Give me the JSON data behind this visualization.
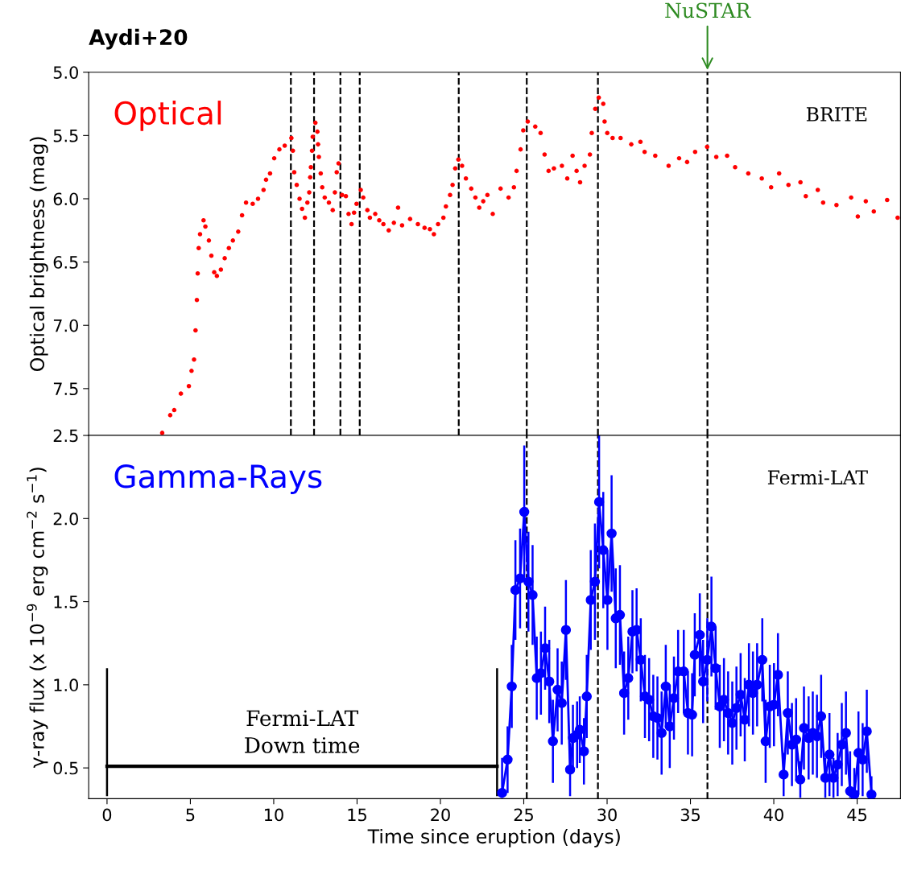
{
  "chart_data": [
    {
      "type": "scatter",
      "title": "Aydi+20",
      "ylabel": "Optical brightness (mag)",
      "marker": "circle",
      "annotations": [
        "Optical",
        "BRITE",
        {
          "text": "NuSTAR",
          "x": 36.02,
          "y": 5.0
        }
      ],
      "xlim": [
        -1.1,
        47.6
      ],
      "xticks": [
        0,
        5,
        10,
        15,
        20,
        25,
        30,
        35,
        40,
        45
      ],
      "ylim": [
        7.87,
        5.0
      ],
      "yticks": [
        {
          "value": 5.0,
          "label": "5.0"
        },
        {
          "value": 5.5,
          "label": "5.5"
        },
        {
          "value": 6.0,
          "label": "6.0"
        },
        {
          "value": 6.5,
          "label": "6.5"
        },
        {
          "value": 7.0,
          "label": "7.0"
        },
        {
          "value": 7.5,
          "label": "7.5"
        }
      ],
      "tick_labels": "y",
      "grid": false,
      "legend": false,
      "ref_lines": [
        {
          "axis": "x",
          "value": 11.03,
          "color": "#000000",
          "line_style": "dashed"
        },
        {
          "axis": "x",
          "value": 12.42,
          "color": "#000000",
          "line_style": "dashed"
        },
        {
          "axis": "x",
          "value": 14.0,
          "color": "#000000",
          "line_style": "dashed"
        },
        {
          "axis": "x",
          "value": 15.16,
          "color": "#000000",
          "line_style": "dashed"
        },
        {
          "axis": "x",
          "value": 21.1,
          "color": "#000000",
          "line_style": "dashed"
        },
        {
          "axis": "x",
          "value": 25.18,
          "color": "#000000",
          "line_style": "dashed"
        },
        {
          "axis": "x",
          "value": 29.45,
          "color": "#000000",
          "line_style": "dashed"
        },
        {
          "axis": "x",
          "value": 36.02,
          "color": "#000000",
          "line_style": "dashed"
        }
      ],
      "series": [
        {
          "color": "#ff0000",
          "x": [
            3.31,
            3.79,
            4.03,
            4.43,
            4.91,
            5.07,
            5.22,
            5.31,
            5.39,
            5.44,
            5.5,
            5.58,
            5.79,
            5.9,
            6.11,
            6.26,
            6.43,
            6.59,
            6.83,
            7.06,
            7.31,
            7.55,
            7.87,
            8.1,
            8.34,
            8.74,
            9.06,
            9.39,
            9.54,
            9.78,
            10.03,
            10.34,
            10.66,
            11.06,
            11.15,
            11.23,
            11.38,
            11.55,
            11.7,
            11.87,
            12.02,
            12.13,
            12.19,
            12.23,
            12.3,
            12.34,
            12.5,
            12.62,
            12.66,
            12.71,
            12.82,
            12.91,
            13.06,
            13.31,
            13.54,
            13.67,
            13.78,
            13.89,
            14.1,
            14.33,
            14.49,
            14.67,
            14.82,
            14.97,
            15.22,
            15.37,
            15.62,
            15.77,
            16.09,
            16.33,
            16.58,
            16.9,
            17.21,
            17.46,
            17.7,
            18.18,
            18.65,
            19.05,
            19.37,
            19.61,
            19.86,
            20.18,
            20.33,
            20.58,
            20.73,
            20.89,
            21.08,
            21.3,
            21.53,
            21.85,
            22.1,
            22.33,
            22.57,
            22.82,
            23.14,
            23.61,
            24.09,
            24.41,
            24.57,
            24.81,
            24.97,
            25.24,
            25.69,
            26.01,
            26.25,
            26.49,
            26.81,
            27.29,
            27.61,
            27.93,
            28.17,
            28.38,
            28.65,
            28.97,
            29.08,
            29.29,
            29.5,
            29.77,
            29.85,
            30.01,
            30.33,
            30.81,
            31.45,
            32.0,
            32.25,
            32.89,
            33.69,
            34.32,
            34.8,
            35.28,
            36.0,
            36.55,
            37.2,
            37.68,
            38.47,
            39.28,
            39.84,
            40.32,
            40.88,
            41.6,
            41.92,
            42.64,
            42.96,
            43.76,
            44.64,
            45.04,
            45.52,
            46.0,
            46.8,
            47.43
          ],
          "values": [
            7.85,
            7.71,
            7.67,
            7.54,
            7.48,
            7.36,
            7.27,
            7.04,
            6.8,
            6.59,
            6.39,
            6.28,
            6.17,
            6.22,
            6.33,
            6.45,
            6.58,
            6.61,
            6.56,
            6.47,
            6.39,
            6.33,
            6.26,
            6.13,
            6.03,
            6.04,
            6.0,
            5.93,
            5.85,
            5.8,
            5.68,
            5.61,
            5.58,
            5.52,
            5.62,
            5.79,
            5.89,
            6.0,
            6.08,
            6.15,
            6.03,
            5.95,
            5.83,
            5.75,
            5.62,
            5.51,
            5.4,
            5.47,
            5.57,
            5.67,
            5.8,
            5.91,
            5.99,
            6.03,
            6.09,
            5.95,
            5.79,
            5.72,
            5.97,
            5.98,
            6.12,
            6.2,
            6.11,
            6.04,
            5.93,
            5.99,
            6.09,
            6.15,
            6.12,
            6.17,
            6.2,
            6.25,
            6.19,
            6.07,
            6.21,
            6.16,
            6.2,
            6.23,
            6.24,
            6.28,
            6.2,
            6.15,
            6.06,
            5.97,
            5.89,
            5.76,
            5.69,
            5.74,
            5.84,
            5.92,
            5.99,
            6.07,
            6.02,
            5.97,
            6.12,
            5.92,
            5.99,
            5.91,
            5.78,
            5.61,
            5.46,
            5.39,
            5.43,
            5.48,
            5.65,
            5.78,
            5.76,
            5.74,
            5.84,
            5.66,
            5.78,
            5.87,
            5.74,
            5.65,
            5.48,
            5.29,
            5.2,
            5.25,
            5.39,
            5.48,
            5.52,
            5.52,
            5.57,
            5.55,
            5.63,
            5.66,
            5.74,
            5.68,
            5.71,
            5.63,
            5.59,
            5.67,
            5.66,
            5.75,
            5.8,
            5.84,
            5.91,
            5.8,
            5.89,
            5.87,
            5.98,
            5.93,
            6.03,
            6.05,
            5.99,
            6.14,
            6.02,
            6.1,
            6.01,
            6.15
          ]
        }
      ]
    },
    {
      "type": "line",
      "xlabel": "Time since eruption (days)",
      "ylabel": "γ-ray flux (x 10$^{−9}$ erg cm$^{−2}$ s$^{−1}$)",
      "marker": "circle",
      "line_style": "solid",
      "annotations": [
        "Gamma-Rays",
        "Fermi-LAT",
        {
          "text": "Fermi-LAT\nDown time",
          "x": 11.7,
          "y": 0.51
        }
      ],
      "xlim": [
        -1.1,
        47.6
      ],
      "xticks": [
        0,
        5,
        10,
        15,
        20,
        25,
        30,
        35,
        40,
        45
      ],
      "ylim": [
        0.315,
        2.5
      ],
      "yticks": [
        {
          "value": 0.5,
          "label": "0.5"
        },
        {
          "value": 1.0,
          "label": "1.0"
        },
        {
          "value": 1.5,
          "label": "1.5"
        },
        {
          "value": 2.0,
          "label": "2.0"
        },
        {
          "value": 2.5,
          "label": "2.5"
        }
      ],
      "grid": false,
      "legend": false,
      "ref_lines": [
        {
          "axis": "x",
          "value": 25.18,
          "color": "#000000",
          "line_style": "dashed"
        },
        {
          "axis": "x",
          "value": 29.45,
          "color": "#000000",
          "line_style": "dashed"
        },
        {
          "axis": "x",
          "value": 36.02,
          "color": "#000000",
          "line_style": "dashed"
        }
      ],
      "series": [
        {
          "color": "#000000",
          "marker": "none",
          "x": [
            0,
            23.4
          ],
          "values": [
            0.51,
            0.51
          ],
          "errors": [
            [
              0.33,
              1.1
            ],
            [
              0.33,
              1.1
            ]
          ]
        },
        {
          "color": "#0000ff",
          "x": [
            23.7,
            24.03,
            24.28,
            24.5,
            24.78,
            25.03,
            25.28,
            25.53,
            25.78,
            26.03,
            26.28,
            26.53,
            26.75,
            27.03,
            27.28,
            27.53,
            27.78,
            27.95,
            28.2,
            28.36,
            28.61,
            28.78,
            29.02,
            29.27,
            29.52,
            29.77,
            30.02,
            30.27,
            30.52,
            30.77,
            31.02,
            31.27,
            31.52,
            31.77,
            32.02,
            32.27,
            32.52,
            32.77,
            33.02,
            33.27,
            33.52,
            33.76,
            34.01,
            34.26,
            34.6,
            34.85,
            35.1,
            35.26,
            35.56,
            35.76,
            36.01,
            36.26,
            36.51,
            36.76,
            37.01,
            37.26,
            37.51,
            37.76,
            38.01,
            38.26,
            38.51,
            38.75,
            39.0,
            39.31,
            39.51,
            39.76,
            40.01,
            40.25,
            40.59,
            40.84,
            41.09,
            41.34,
            41.59,
            41.81,
            42.09,
            42.34,
            42.59,
            42.84,
            43.09,
            43.34,
            43.58,
            43.83,
            44.08,
            44.33,
            44.58,
            44.83,
            45.08,
            45.33,
            45.58,
            45.86
          ],
          "values": [
            0.35,
            0.55,
            0.99,
            1.57,
            1.64,
            2.04,
            1.62,
            1.54,
            1.04,
            1.07,
            1.22,
            1.02,
            0.66,
            0.97,
            0.89,
            1.33,
            0.49,
            0.68,
            0.7,
            0.73,
            0.6,
            0.93,
            1.51,
            1.62,
            2.1,
            1.81,
            1.51,
            1.91,
            1.4,
            1.42,
            0.95,
            1.04,
            1.32,
            1.33,
            1.15,
            0.93,
            0.91,
            0.81,
            0.8,
            0.71,
            0.99,
            0.75,
            0.92,
            1.08,
            1.08,
            0.83,
            0.82,
            1.18,
            1.3,
            1.02,
            1.15,
            1.35,
            1.1,
            0.87,
            0.91,
            0.83,
            0.77,
            0.86,
            0.94,
            0.79,
            1.0,
            0.95,
            1.0,
            1.15,
            0.66,
            0.87,
            0.88,
            1.06,
            0.46,
            0.83,
            0.64,
            0.67,
            0.43,
            0.74,
            0.68,
            0.71,
            0.69,
            0.81,
            0.44,
            0.58,
            0.44,
            0.52,
            0.64,
            0.71,
            0.36,
            0.34,
            0.59,
            0.55,
            0.72,
            0.34
          ],
          "errors": [
            [
              0.32,
              0.56
            ],
            0.2,
            0.25,
            0.3,
            0.3,
            0.4,
            0.3,
            0.3,
            0.25,
            0.25,
            0.25,
            0.25,
            0.25,
            0.25,
            0.25,
            0.3,
            0.16,
            0.2,
            0.2,
            0.2,
            0.2,
            0.25,
            0.3,
            0.35,
            0.4,
            0.35,
            0.3,
            0.35,
            0.3,
            0.3,
            0.25,
            0.25,
            0.25,
            0.25,
            0.25,
            0.25,
            0.25,
            0.25,
            0.25,
            0.25,
            0.25,
            0.25,
            0.25,
            0.25,
            0.25,
            0.25,
            0.25,
            0.25,
            0.25,
            0.25,
            0.25,
            0.3,
            0.25,
            0.25,
            0.25,
            0.25,
            0.25,
            0.25,
            0.25,
            0.25,
            0.25,
            0.25,
            0.25,
            0.25,
            0.25,
            0.25,
            0.25,
            0.25,
            0.13,
            0.25,
            0.25,
            0.25,
            0.11,
            0.25,
            0.25,
            0.25,
            0.25,
            0.25,
            0.12,
            0.25,
            0.12,
            0.19,
            0.25,
            0.25,
            [
              0.32,
              0.6
            ],
            [
              0.32,
              0.5
            ],
            0.25,
            0.22,
            0.25,
            [
              0.32,
              0.45
            ]
          ]
        }
      ]
    }
  ]
}
